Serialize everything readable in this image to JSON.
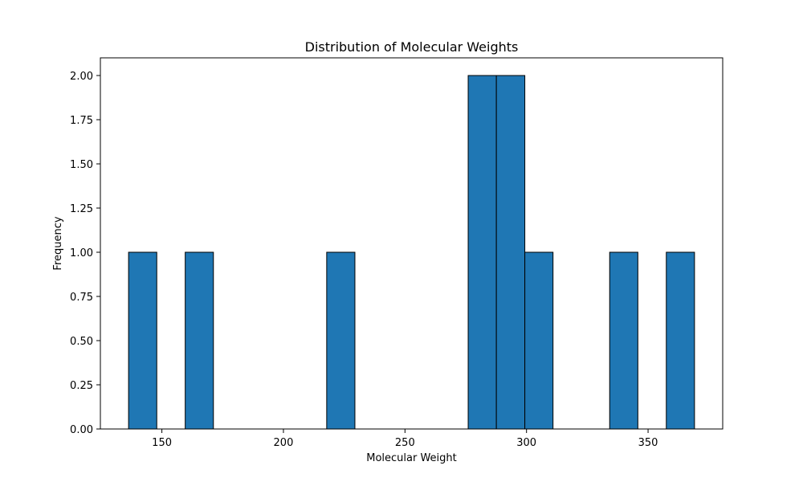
{
  "chart_data": {
    "type": "bar",
    "title": "Distribution of Molecular Weights",
    "xlabel": "Molecular Weight",
    "ylabel": "Frequency",
    "bins": [
      {
        "x0": 136.3,
        "x1": 147.9,
        "value": 1
      },
      {
        "x0": 147.9,
        "x1": 159.6,
        "value": 0
      },
      {
        "x0": 159.6,
        "x1": 171.2,
        "value": 1
      },
      {
        "x0": 171.2,
        "x1": 182.9,
        "value": 0
      },
      {
        "x0": 182.9,
        "x1": 194.5,
        "value": 0
      },
      {
        "x0": 194.5,
        "x1": 206.1,
        "value": 0
      },
      {
        "x0": 206.1,
        "x1": 217.8,
        "value": 0
      },
      {
        "x0": 217.8,
        "x1": 229.4,
        "value": 1
      },
      {
        "x0": 229.4,
        "x1": 241.1,
        "value": 0
      },
      {
        "x0": 241.1,
        "x1": 252.7,
        "value": 0
      },
      {
        "x0": 252.7,
        "x1": 264.3,
        "value": 0
      },
      {
        "x0": 264.3,
        "x1": 276.0,
        "value": 0
      },
      {
        "x0": 276.0,
        "x1": 287.6,
        "value": 2
      },
      {
        "x0": 287.6,
        "x1": 299.3,
        "value": 2
      },
      {
        "x0": 299.3,
        "x1": 310.9,
        "value": 1
      },
      {
        "x0": 310.9,
        "x1": 322.5,
        "value": 0
      },
      {
        "x0": 322.5,
        "x1": 334.2,
        "value": 0
      },
      {
        "x0": 334.2,
        "x1": 345.8,
        "value": 1
      },
      {
        "x0": 345.8,
        "x1": 357.5,
        "value": 0
      },
      {
        "x0": 357.5,
        "x1": 369.1,
        "value": 1
      }
    ],
    "xlim": [
      124.7,
      380.7
    ],
    "ylim": [
      0,
      2.1
    ],
    "xticks": [
      150,
      200,
      250,
      300,
      350
    ],
    "xtick_labels": [
      "150",
      "200",
      "250",
      "300",
      "350"
    ],
    "yticks": [
      0,
      0.25,
      0.5,
      0.75,
      1.0,
      1.25,
      1.5,
      1.75,
      2.0
    ],
    "ytick_labels": [
      "0.00",
      "0.25",
      "0.50",
      "0.75",
      "1.00",
      "1.25",
      "1.50",
      "1.75",
      "2.00"
    ],
    "grid": false,
    "bar_color": "#1f77b4",
    "edge_color": "#000000"
  }
}
